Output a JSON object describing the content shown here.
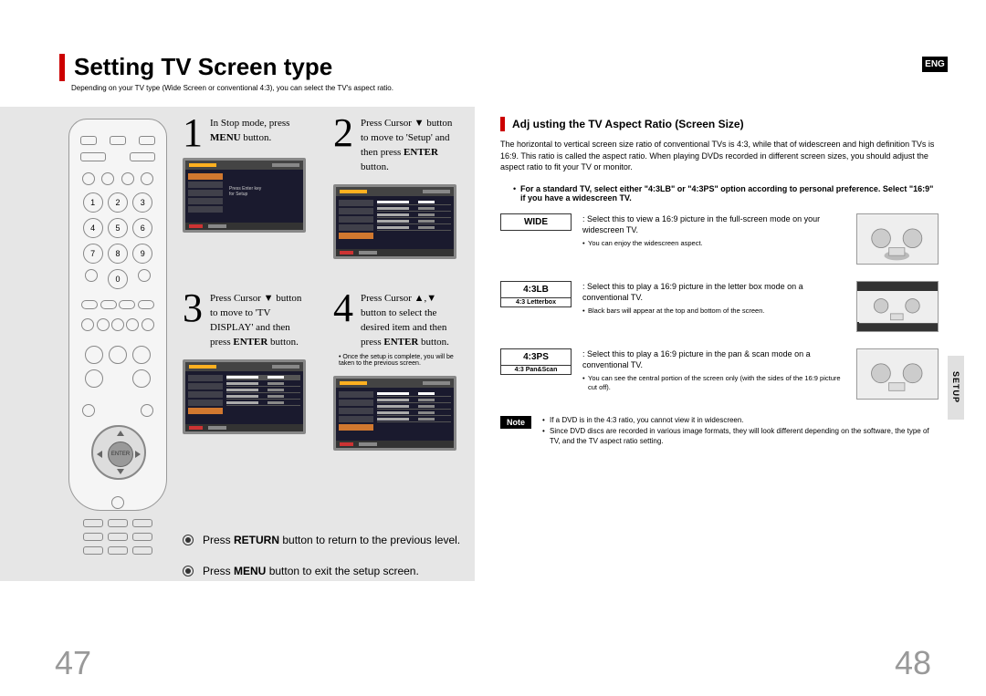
{
  "lang_tag": "ENG",
  "page_left": "47",
  "page_right": "48",
  "title": "Setting TV Screen type",
  "subtitle": "Depending on your TV type (Wide Screen or conventional 4:3), you can select the TV's aspect ratio.",
  "steps": {
    "s1": {
      "num": "1",
      "text": "In Stop mode, press <b>MENU</b> button."
    },
    "s2": {
      "num": "2",
      "text": "Press Cursor ▼ button to move to 'Setup' and then press <b>ENTER</b> button."
    },
    "s3": {
      "num": "3",
      "text": "Press Cursor ▼ button to move to 'TV DISPLAY' and then press <b>ENTER</b> button."
    },
    "s4": {
      "num": "4",
      "text": "Press Cursor ▲,▼ button to select the desired item and then press <b>ENTER</b> button.",
      "note": "• Once the setup is complete, you will be taken to the previous screen."
    }
  },
  "return_line": "Press <b>RETURN</b> button to return to the previous level.",
  "menu_line": "Press <b>MENU</b> button to exit the setup screen.",
  "section_title": "Adj usting the TV Aspect Ratio (Screen Size)",
  "section_intro": "The horizontal to vertical screen size ratio of conventional TVs is 4:3, while that of widescreen and high definition TVs is 16:9. This ratio is called the aspect ratio. When playing DVDs recorded in different screen sizes, you should adjust the aspect ratio to fit your TV or monitor.",
  "bullets": {
    "b1": "For a standard TV, select either \"4:3LB\" or \"4:3PS\" option according to personal preference. Select \"16:9\" if you have a widescreen TV."
  },
  "options": {
    "wide": {
      "label": "WIDE",
      "desc": ": Select this to view a 16:9 picture in the full-screen mode on your widescreen TV.",
      "sub": "You can enjoy the widescreen aspect."
    },
    "lb": {
      "label": "4:3LB",
      "sublabel": "4:3 Letterbox",
      "desc": ": Select this to play a 16:9 picture in the letter box mode on a conventional TV.",
      "sub": "Black bars will appear at the top and bottom of the screen."
    },
    "ps": {
      "label": "4:3PS",
      "sublabel": "4:3 Pan&Scan",
      "desc": ": Select this to play a 16:9 picture in the pan & scan mode on a conventional TV.",
      "sub": "You can see the central portion of the screen only (with the sides of the 16:9 picture cut off)."
    }
  },
  "note_label": "Note",
  "notes": {
    "n1": "If a DVD is in the 4:3 ratio, you cannot view it in widescreen.",
    "n2": "Since DVD discs are recorded in various image formats, they will look different depending on the software, the type of TV, and the TV aspect ratio setting."
  },
  "setup_tab": "SETUP",
  "remote": {
    "enter": "ENTER"
  }
}
